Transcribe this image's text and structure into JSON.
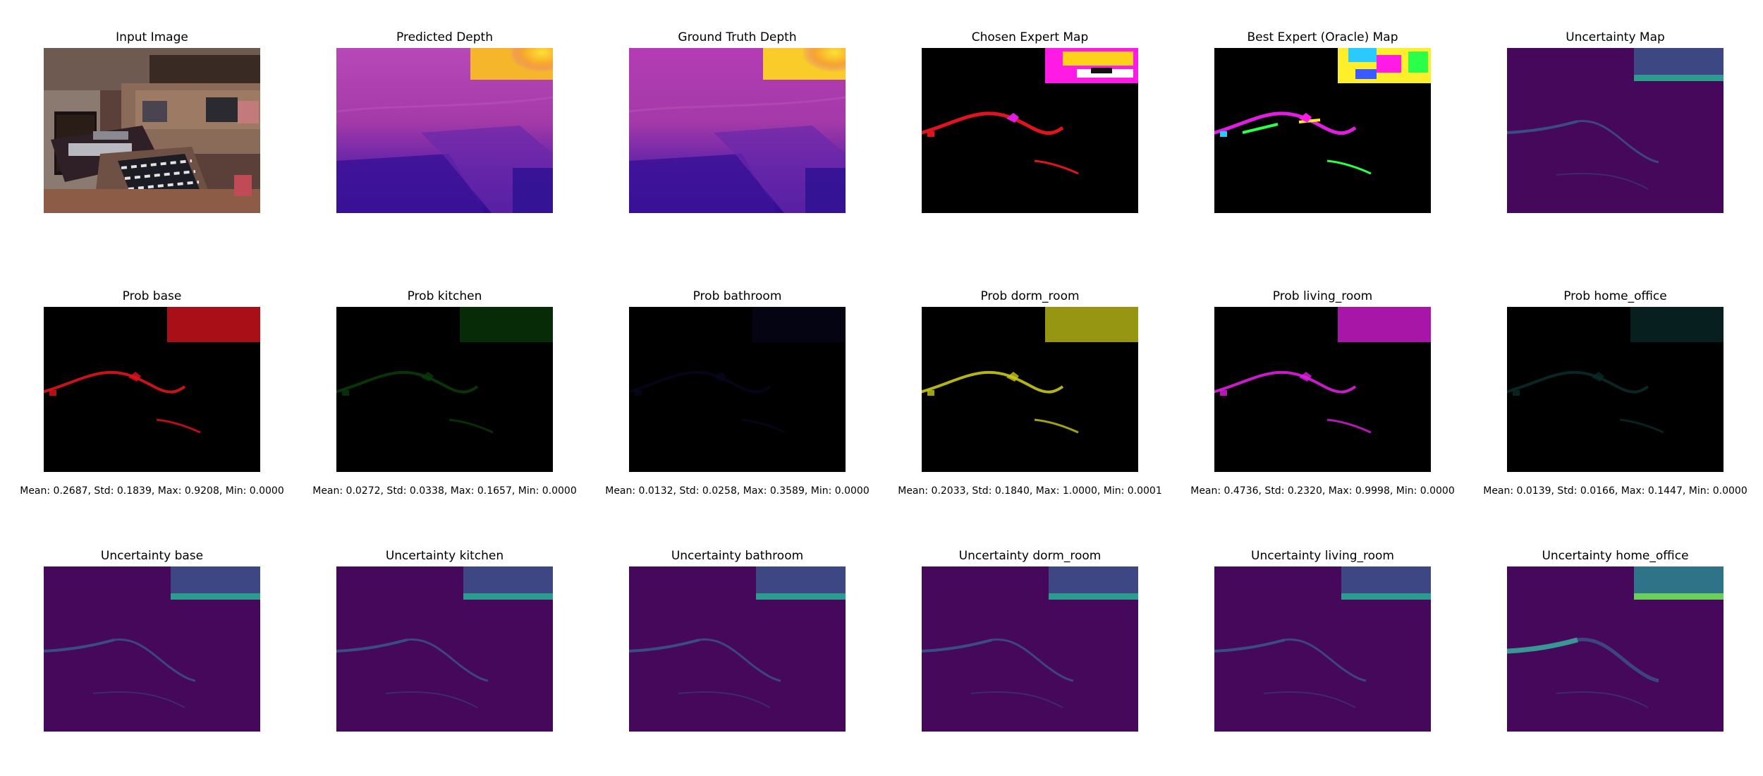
{
  "figure": {
    "rows": [
      {
        "panels": [
          {
            "title": "Input Image",
            "kind": "rgb"
          },
          {
            "title": "Predicted Depth",
            "kind": "depth"
          },
          {
            "title": "Ground Truth Depth",
            "kind": "depth-gt"
          },
          {
            "title": "Chosen Expert Map",
            "kind": "expert"
          },
          {
            "title": "Best Expert (Oracle) Map",
            "kind": "oracle"
          },
          {
            "title": "Uncertainty Map",
            "kind": "uncert"
          }
        ]
      },
      {
        "panels": [
          {
            "title": "Prob base",
            "kind": "prob",
            "color": "#e0141e",
            "stats": "Mean: 0.2687, Std: 0.1839, Max: 0.9208, Min: 0.0000"
          },
          {
            "title": "Prob kitchen",
            "kind": "prob",
            "color": "#0a3a0a",
            "stats": "Mean: 0.0272, Std: 0.0338, Max: 0.1657, Min: 0.0000"
          },
          {
            "title": "Prob bathroom",
            "kind": "prob",
            "color": "#06061a",
            "stats": "Mean: 0.0132, Std: 0.0258, Max: 0.3589, Min: 0.0000"
          },
          {
            "title": "Prob dorm_room",
            "kind": "prob",
            "color": "#c8c81a",
            "stats": "Mean: 0.2033, Std: 0.1840, Max: 1.0000, Min: 0.0001"
          },
          {
            "title": "Prob living_room",
            "kind": "prob",
            "color": "#e01ee0",
            "stats": "Mean: 0.4736, Std: 0.2320, Max: 0.9998, Min: 0.0000"
          },
          {
            "title": "Prob home_office",
            "kind": "prob",
            "color": "#0a2a28",
            "stats": "Mean: 0.0139, Std: 0.0166, Max: 0.1447, Min: 0.0000"
          }
        ]
      },
      {
        "panels": [
          {
            "title": "Uncertainty base",
            "kind": "uncert"
          },
          {
            "title": "Uncertainty kitchen",
            "kind": "uncert"
          },
          {
            "title": "Uncertainty bathroom",
            "kind": "uncert"
          },
          {
            "title": "Uncertainty dorm_room",
            "kind": "uncert"
          },
          {
            "title": "Uncertainty living_room",
            "kind": "uncert"
          },
          {
            "title": "Uncertainty home_office",
            "kind": "uncert-strong"
          }
        ]
      }
    ]
  }
}
